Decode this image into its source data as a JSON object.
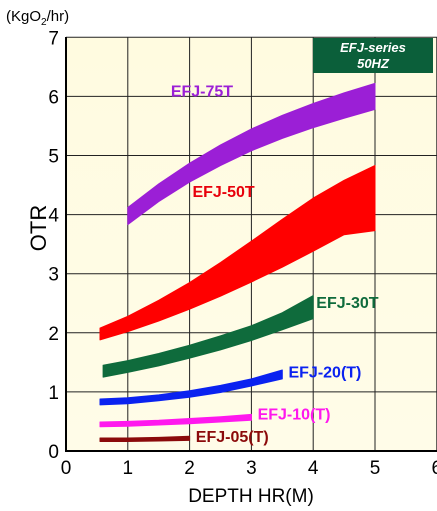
{
  "chart_data": {
    "type": "area",
    "title": "",
    "ylabel": "OTR",
    "yunit_prefix": "(KgO",
    "yunit_sub": "2",
    "yunit_suffix": "/hr)",
    "xlabel": "DEPTH HR(M)",
    "xlim": [
      0,
      6
    ],
    "ylim": [
      0,
      7
    ],
    "xticks": [
      "0",
      "1",
      "2",
      "3",
      "4",
      "5",
      "6"
    ],
    "yticks": [
      "0",
      "1",
      "2",
      "3",
      "4",
      "5",
      "6",
      "7"
    ],
    "grid": false,
    "badge": {
      "line1": "EFJ-series",
      "line2": "50HZ",
      "color": "#0b5f3a"
    },
    "series": [
      {
        "name": "EFJ-75T",
        "color": "#9b1fd6",
        "label_color": "#9b1fd6",
        "x": [
          1.0,
          1.5,
          2.0,
          2.5,
          3.0,
          3.5,
          4.0,
          4.5,
          5.0
        ],
        "lower": [
          3.83,
          4.22,
          4.55,
          4.83,
          5.08,
          5.29,
          5.47,
          5.63,
          5.78
        ],
        "upper": [
          4.12,
          4.52,
          4.87,
          5.18,
          5.45,
          5.68,
          5.88,
          6.06,
          6.22
        ]
      },
      {
        "name": "EFJ-50T",
        "color": "#ff0000",
        "label_color": "#e8000b",
        "x": [
          0.55,
          1.0,
          1.5,
          2.0,
          2.5,
          3.0,
          3.5,
          4.0,
          4.5,
          5.0
        ],
        "lower": [
          1.88,
          2.02,
          2.2,
          2.4,
          2.62,
          2.86,
          3.11,
          3.38,
          3.66,
          3.73
        ],
        "upper": [
          2.08,
          2.28,
          2.55,
          2.85,
          3.19,
          3.55,
          3.92,
          4.28,
          4.58,
          4.83
        ]
      },
      {
        "name": "EFJ-30T",
        "color": "#0f6b3c",
        "label_color": "#0f6b3c",
        "x": [
          0.6,
          1.0,
          1.5,
          2.0,
          2.5,
          3.0,
          3.5,
          4.0
        ],
        "lower": [
          1.25,
          1.33,
          1.44,
          1.57,
          1.71,
          1.87,
          2.05,
          2.24
        ],
        "upper": [
          1.45,
          1.53,
          1.65,
          1.79,
          1.95,
          2.12,
          2.34,
          2.63
        ]
      },
      {
        "name": "EFJ-20(T)",
        "color": "#0a22f0",
        "label_color": "#0a22f0",
        "x": [
          0.55,
          1.0,
          1.5,
          2.0,
          2.5,
          3.0,
          3.5
        ],
        "lower": [
          0.78,
          0.8,
          0.85,
          0.91,
          0.99,
          1.1,
          1.22
        ],
        "upper": [
          0.88,
          0.9,
          0.95,
          1.02,
          1.11,
          1.22,
          1.37
        ]
      },
      {
        "name": "EFJ-10(T)",
        "color": "#ff18ee",
        "label_color": "#ff18ee",
        "x": [
          0.55,
          1.0,
          1.5,
          2.0,
          2.5,
          3.0
        ],
        "lower": [
          0.41,
          0.42,
          0.44,
          0.46,
          0.49,
          0.52
        ],
        "upper": [
          0.49,
          0.5,
          0.52,
          0.55,
          0.58,
          0.62
        ]
      },
      {
        "name": "EFJ-05(T)",
        "color": "#8b0a0a",
        "label_color": "#8b0a0a",
        "x": [
          0.55,
          1.0,
          1.5,
          2.0
        ],
        "lower": [
          0.16,
          0.16,
          0.17,
          0.18
        ],
        "upper": [
          0.22,
          0.22,
          0.23,
          0.25
        ]
      }
    ]
  }
}
